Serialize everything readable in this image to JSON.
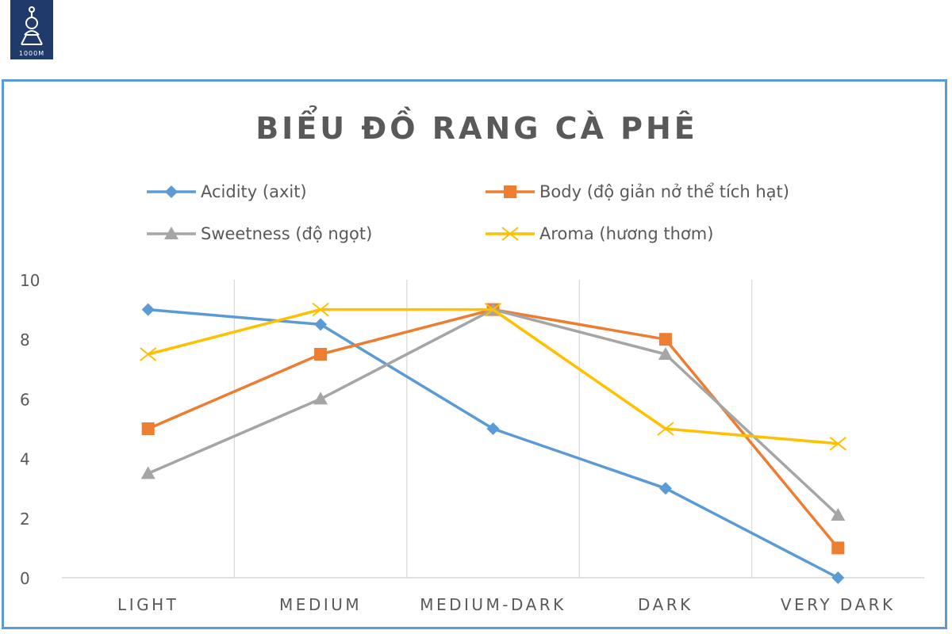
{
  "logo": {
    "text": "1000M",
    "name": "1000M logo"
  },
  "colors": {
    "frame": "#5b9bd5",
    "grid": "#d9d9d9",
    "title": "#595959"
  },
  "chart_data": {
    "type": "line",
    "title": "BIỂU ĐỒ RANG CÀ PHÊ",
    "xlabel": "",
    "ylabel": "",
    "ylim": [
      0,
      10
    ],
    "yticks": [
      0,
      2,
      4,
      6,
      8,
      10
    ],
    "categories": [
      "LIGHT",
      "MEDIUM",
      "MEDIUM-DARK",
      "DARK",
      "VERY DARK"
    ],
    "grid": "vertical",
    "legend_position": "top",
    "series": [
      {
        "name": "Acidity (axit)",
        "color": "#5b9bd5",
        "marker": "diamond",
        "values": [
          9,
          8.5,
          5,
          3,
          0
        ]
      },
      {
        "name": "Body (độ giản nở thể tích hạt)",
        "color": "#ed7d31",
        "marker": "square",
        "values": [
          5,
          7.5,
          9,
          8,
          1
        ]
      },
      {
        "name": "Sweetness (độ ngọt)",
        "color": "#a5a5a5",
        "marker": "triangle",
        "values": [
          3.5,
          6,
          9,
          7.5,
          2.1
        ]
      },
      {
        "name": "Aroma (hương thơm)",
        "color": "#ffc000",
        "marker": "x",
        "values": [
          7.5,
          9,
          9,
          5,
          4.5
        ]
      }
    ]
  }
}
